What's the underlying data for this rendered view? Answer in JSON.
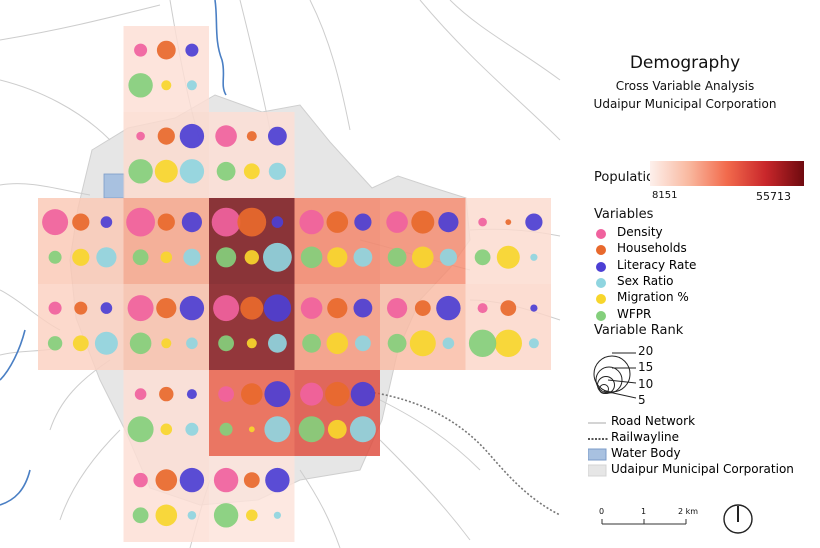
{
  "title": "Demography",
  "subtitle": "Cross Variable Analysis",
  "subtitle2": "Udaipur Municipal Corporation",
  "population_legend": {
    "label": "Population",
    "min": "8151",
    "max": "55713",
    "colors": [
      "#fdf0ec",
      "#f9b9a0",
      "#f26a4c",
      "#c9272b",
      "#6e0a0f"
    ]
  },
  "variables": {
    "title": "Variables",
    "items": [
      {
        "label": "Density",
        "color": "#f0629e"
      },
      {
        "label": "Households",
        "color": "#e8692d"
      },
      {
        "label": "Literacy Rate",
        "color": "#4c3fd4"
      },
      {
        "label": "Sex Ratio",
        "color": "#8fd5e0"
      },
      {
        "label": "Migration %",
        "color": "#f7d62c"
      },
      {
        "label": "WFPR",
        "color": "#84cf7c"
      }
    ]
  },
  "variable_rank": {
    "title": "Variable Rank",
    "levels": [
      "20",
      "15",
      "10",
      "5"
    ]
  },
  "map_legend": {
    "road": "Road Network",
    "rail": "Railwayline",
    "water": "Water Body",
    "umc": "Udaipur Municipal Corporation"
  },
  "scale": {
    "ticks": [
      "0",
      "1",
      "2 km"
    ]
  },
  "grid_data": {
    "cells": [
      {
        "col": 0,
        "row": 2,
        "population_level": 0.18,
        "ranks": [
          18,
          12,
          8,
          14,
          12,
          9
        ]
      },
      {
        "col": 1,
        "row": 2,
        "population_level": 0.32,
        "ranks": [
          20,
          12,
          14,
          12,
          8,
          11
        ]
      },
      {
        "col": 2,
        "row": 2,
        "population_level": 0.98,
        "ranks": [
          20,
          20,
          8,
          20,
          10,
          14
        ]
      },
      {
        "col": 3,
        "row": 2,
        "population_level": 0.42,
        "ranks": [
          17,
          15,
          12,
          13,
          14,
          15
        ]
      },
      {
        "col": 4,
        "row": 2,
        "population_level": 0.4,
        "ranks": [
          15,
          16,
          14,
          12,
          15,
          13
        ]
      },
      {
        "col": 5,
        "row": 2,
        "population_level": 0.1,
        "ranks": [
          6,
          4,
          12,
          5,
          16,
          11
        ]
      },
      {
        "col": 0,
        "row": 3,
        "population_level": 0.14,
        "ranks": [
          9,
          9,
          8,
          16,
          11,
          10
        ]
      },
      {
        "col": 1,
        "row": 3,
        "population_level": 0.22,
        "ranks": [
          18,
          14,
          17,
          8,
          7,
          15
        ]
      },
      {
        "col": 2,
        "row": 3,
        "population_level": 0.95,
        "ranks": [
          18,
          16,
          19,
          13,
          7,
          11
        ]
      },
      {
        "col": 3,
        "row": 3,
        "population_level": 0.36,
        "ranks": [
          15,
          14,
          13,
          11,
          15,
          13
        ]
      },
      {
        "col": 4,
        "row": 3,
        "population_level": 0.24,
        "ranks": [
          14,
          11,
          17,
          8,
          18,
          13
        ]
      },
      {
        "col": 5,
        "row": 3,
        "population_level": 0.12,
        "ranks": [
          7,
          11,
          5,
          7,
          19,
          19
        ]
      },
      {
        "col": 1,
        "row": 0,
        "population_level": 0.08,
        "ranks": [
          9,
          13,
          9,
          7,
          7,
          17
        ]
      },
      {
        "col": 1,
        "row": 1,
        "population_level": 0.1,
        "ranks": [
          6,
          12,
          17,
          17,
          16,
          17
        ]
      },
      {
        "col": 2,
        "row": 1,
        "population_level": 0.08,
        "ranks": [
          15,
          7,
          13,
          12,
          11,
          13
        ]
      },
      {
        "col": 1,
        "row": 4,
        "population_level": 0.08,
        "ranks": [
          8,
          10,
          7,
          9,
          8,
          18
        ]
      },
      {
        "col": 2,
        "row": 4,
        "population_level": 0.55,
        "ranks": [
          11,
          15,
          18,
          18,
          4,
          9
        ]
      },
      {
        "col": 3,
        "row": 4,
        "population_level": 0.62,
        "ranks": [
          16,
          17,
          17,
          18,
          13,
          18
        ]
      },
      {
        "col": 1,
        "row": 5,
        "population_level": 0.08,
        "ranks": [
          10,
          15,
          17,
          6,
          15,
          11
        ]
      },
      {
        "col": 2,
        "row": 5,
        "population_level": 0.06,
        "ranks": [
          17,
          11,
          17,
          5,
          8,
          17
        ]
      }
    ]
  }
}
